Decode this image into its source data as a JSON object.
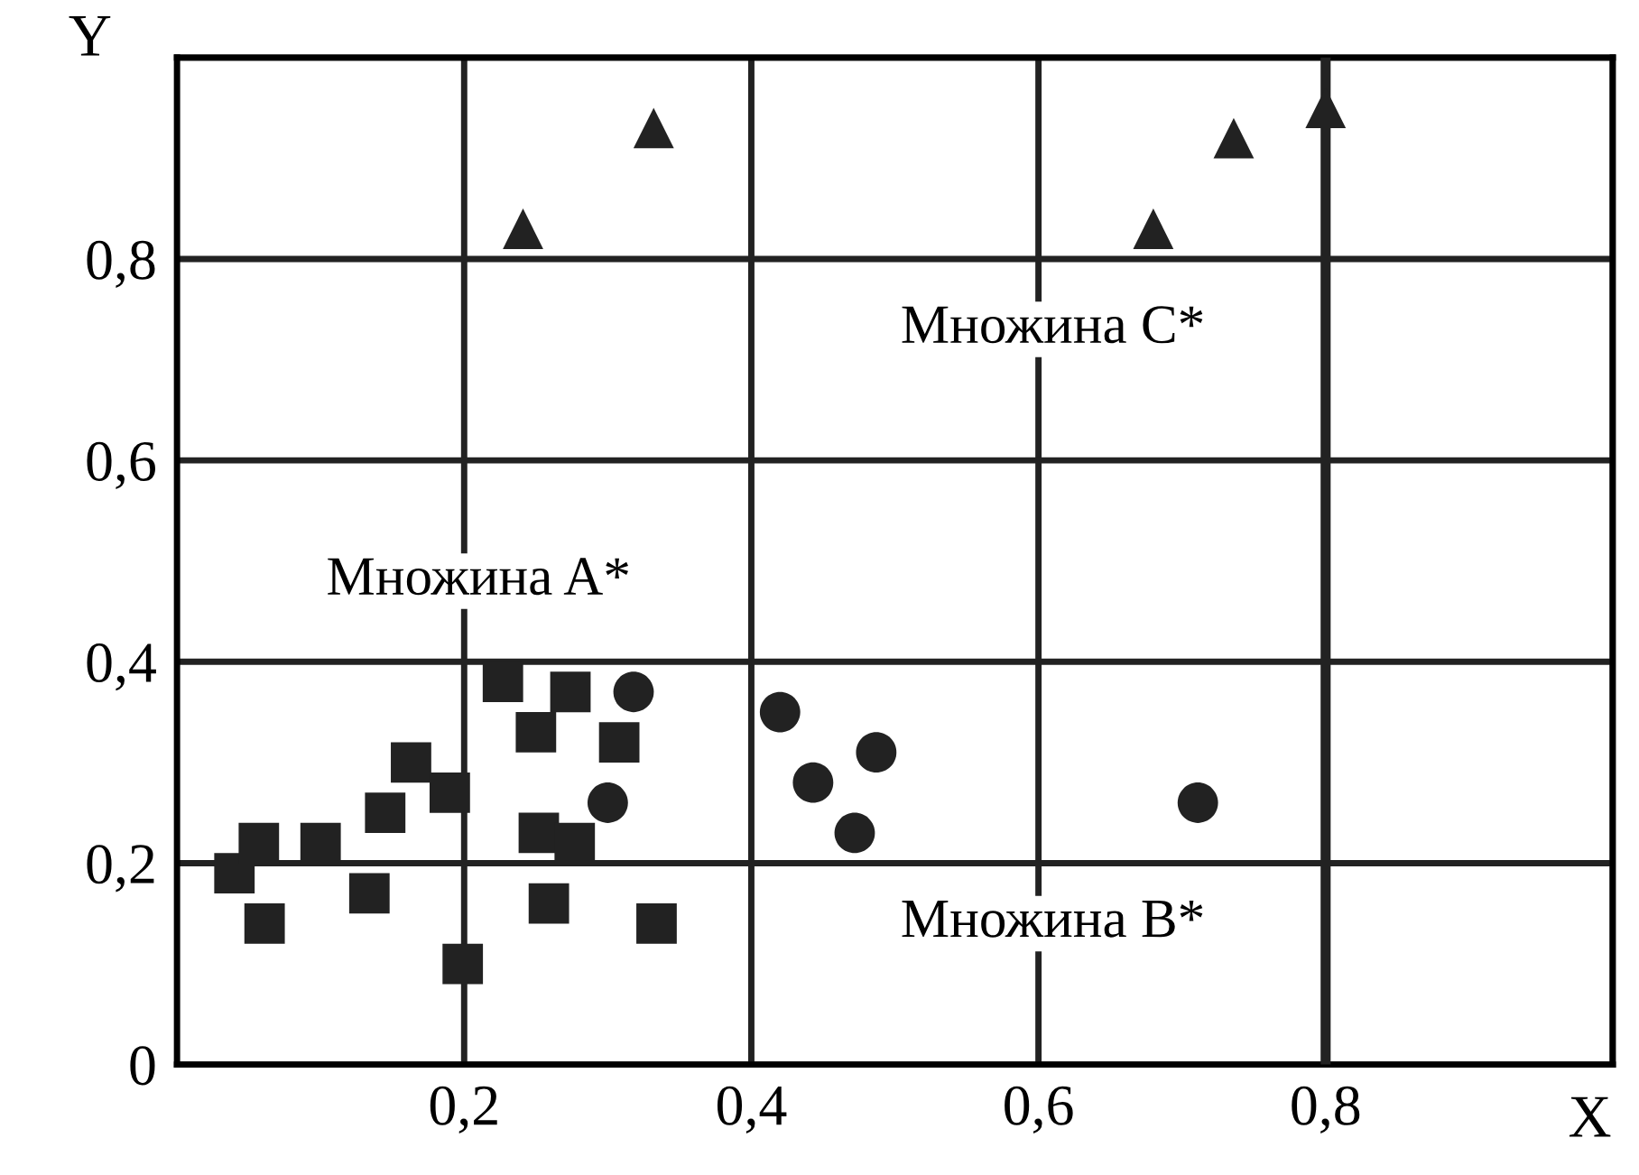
{
  "chart_data": {
    "type": "scatter",
    "xlabel": "X",
    "ylabel": "Y",
    "xlim": [
      0,
      1
    ],
    "ylim": [
      0,
      1
    ],
    "xticks": [
      {
        "value": 0.2,
        "label": "0,2"
      },
      {
        "value": 0.4,
        "label": "0,4"
      },
      {
        "value": 0.6,
        "label": "0,6"
      },
      {
        "value": 0.8,
        "label": "0,8"
      },
      {
        "value": 1.0,
        "label": null
      }
    ],
    "yticks": [
      {
        "value": 0,
        "label": "0"
      },
      {
        "value": 0.2,
        "label": "0,2"
      },
      {
        "value": 0.4,
        "label": "0,4"
      },
      {
        "value": 0.6,
        "label": "0,6"
      },
      {
        "value": 0.8,
        "label": "0,8"
      },
      {
        "value": 1.0,
        "label": null
      }
    ],
    "grid": true,
    "legend": false,
    "series": [
      {
        "color": "#222222",
        "marker": "square",
        "x": [
          0.04,
          0.057,
          0.061,
          0.1,
          0.134,
          0.145,
          0.163,
          0.19,
          0.199,
          0.227,
          0.25,
          0.252,
          0.259,
          0.274,
          0.277,
          0.308,
          0.334
        ],
        "values": [
          0.19,
          0.22,
          0.14,
          0.22,
          0.17,
          0.25,
          0.3,
          0.27,
          0.1,
          0.38,
          0.33,
          0.23,
          0.16,
          0.37,
          0.22,
          0.32,
          0.14
        ]
      },
      {
        "color": "#222222",
        "marker": "circle",
        "x": [
          0.318,
          0.3,
          0.42,
          0.443,
          0.487,
          0.472,
          0.711
        ],
        "values": [
          0.37,
          0.26,
          0.35,
          0.28,
          0.31,
          0.23,
          0.26
        ]
      },
      {
        "color": "#222222",
        "marker": "triangle",
        "x": [
          0.241,
          0.332,
          0.68,
          0.736,
          0.8
        ],
        "values": [
          0.83,
          0.93,
          0.83,
          0.92,
          0.95
        ]
      }
    ],
    "ref_lines": [
      {
        "axis": "x",
        "value": 0.8,
        "color": "#222222"
      }
    ],
    "annotations": [
      "Множина A*",
      "Множина C*",
      "Множина B*"
    ]
  }
}
